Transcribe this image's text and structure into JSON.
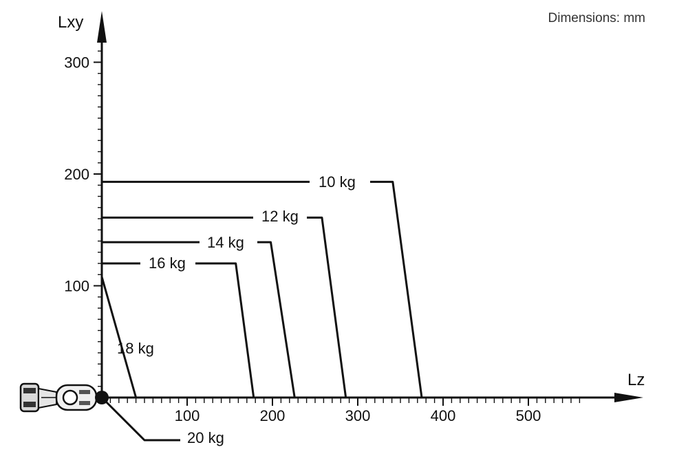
{
  "chart_data": {
    "type": "line",
    "note": "Dimensions: mm",
    "xlabel": "Lz",
    "ylabel": "Lxy",
    "xlim": [
      0,
      600
    ],
    "ylim": [
      0,
      330
    ],
    "x_ticks": [
      100,
      200,
      300,
      400,
      500
    ],
    "y_ticks": [
      100,
      200,
      300
    ],
    "grid": false,
    "series": [
      {
        "name": "10 kg",
        "points": [
          [
            0,
            193
          ],
          [
            341,
            193
          ],
          [
            375,
            0
          ]
        ]
      },
      {
        "name": "12 kg",
        "points": [
          [
            0,
            161
          ],
          [
            258,
            161
          ],
          [
            286,
            0
          ]
        ]
      },
      {
        "name": "14 kg",
        "points": [
          [
            0,
            139
          ],
          [
            198,
            139
          ],
          [
            226,
            0
          ]
        ]
      },
      {
        "name": "16 kg",
        "points": [
          [
            0,
            120
          ],
          [
            157,
            120
          ],
          [
            178,
            0
          ]
        ]
      },
      {
        "name": "18 kg",
        "points": [
          [
            0,
            108
          ],
          [
            40,
            0
          ]
        ]
      },
      {
        "name": "20 kg",
        "points": [
          [
            0,
            0
          ]
        ]
      }
    ]
  }
}
